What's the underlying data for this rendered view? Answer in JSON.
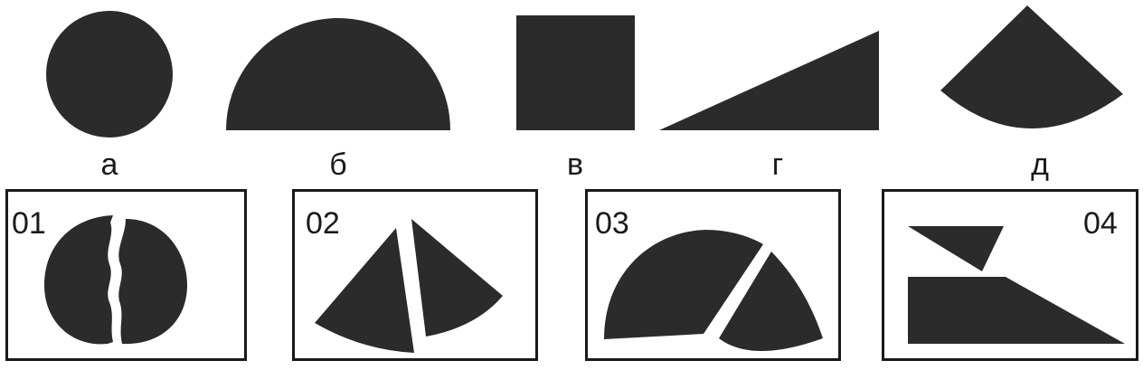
{
  "shapes": [
    {
      "letter": "а",
      "kind": "circle"
    },
    {
      "letter": "б",
      "kind": "semicircle"
    },
    {
      "letter": "в",
      "kind": "square"
    },
    {
      "letter": "г",
      "kind": "right-triangle"
    },
    {
      "letter": "д",
      "kind": "circular-sector"
    }
  ],
  "panels": [
    {
      "number": "01"
    },
    {
      "number": "02"
    },
    {
      "number": "03"
    },
    {
      "number": "04"
    }
  ],
  "colors": {
    "shape_fill": "#2b2b2b",
    "border": "#1a1a1a",
    "background": "#ffffff"
  }
}
